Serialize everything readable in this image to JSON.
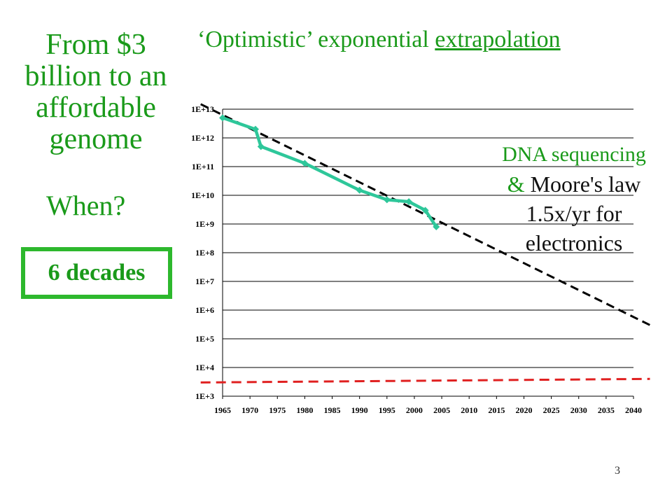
{
  "slide": {
    "title_main": "‘Optimistic’ exponential ",
    "title_link": "extrapolation",
    "left_title": "From $3 billion to an affordable genome",
    "when": "When?",
    "answer": "6 decades",
    "side_note_line1": "DNA sequencing",
    "side_note_amp": "& ",
    "side_note_rest": "Moore's law",
    "side_note_line3": "1.5x/yr for",
    "side_note_line4": "electronics",
    "page_number": "3"
  },
  "chart_data": {
    "type": "line",
    "title": "",
    "xlabel": "",
    "ylabel": "",
    "y_scale": "log",
    "xlim": [
      1965,
      2040
    ],
    "ylim_exponent": [
      3,
      13
    ],
    "x_ticks": [
      "1965",
      "1970",
      "1975",
      "1980",
      "1985",
      "1990",
      "1995",
      "2000",
      "2005",
      "2010",
      "2015",
      "2020",
      "2025",
      "2030",
      "2035",
      "2040"
    ],
    "y_ticks": [
      "1E+3",
      "1E+4",
      "1E+5",
      "1E+6",
      "1E+7",
      "1E+8",
      "1E+9",
      "1E+10",
      "1E+11",
      "1E+12",
      "1E+13"
    ],
    "grid": true,
    "colors": {
      "cost_line": "#2ec79a",
      "trend_line": "#000000",
      "affordable_line": "#e02020",
      "axis": "#000000",
      "text": "#1a9a1a"
    },
    "series": [
      {
        "x": [
          1965,
          1971,
          1972,
          1980,
          1990,
          1995,
          1999,
          2002,
          2004
        ],
        "y": [
          5000000000000.0,
          2000000000000.0,
          500000000000.0,
          130000000000.0,
          15000000000.0,
          7000000000.0,
          6000000000.0,
          3000000000.0,
          800000000.0
        ]
      },
      {
        "x": [
          1961,
          2043
        ],
        "y": [
          15000000000000.0,
          300000.0
        ]
      },
      {
        "x": [
          1961,
          2043
        ],
        "y": [
          3000.0,
          4000.0
        ]
      }
    ]
  }
}
